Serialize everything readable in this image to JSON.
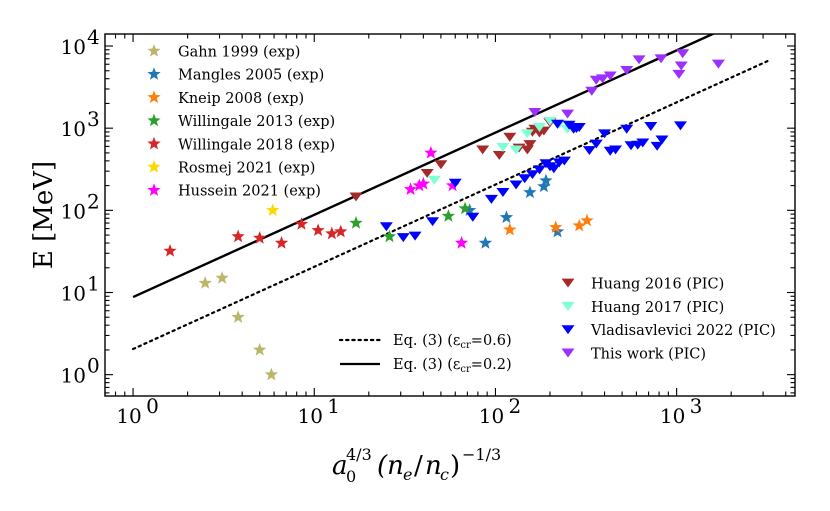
{
  "chart_data": {
    "type": "scatter",
    "title": "",
    "xscale": "log",
    "yscale": "log",
    "xlim": [
      0.7,
      4500
    ],
    "ylim": [
      0.55,
      14000
    ],
    "xlabel": "a_0^{4/3}(n_e/n_c)^{-1/3}",
    "ylabel": "E [MeV]",
    "x_ticks": [
      {
        "value": 1,
        "base": "10",
        "exp": "0"
      },
      {
        "value": 10,
        "base": "10",
        "exp": "1"
      },
      {
        "value": 100,
        "base": "10",
        "exp": "2"
      },
      {
        "value": 1000,
        "base": "10",
        "exp": "3"
      }
    ],
    "y_ticks": [
      {
        "value": 1,
        "base": "10",
        "exp": "0"
      },
      {
        "value": 10,
        "base": "10",
        "exp": "1"
      },
      {
        "value": 100,
        "base": "10",
        "exp": "2"
      },
      {
        "value": 1000,
        "base": "10",
        "exp": "3"
      },
      {
        "value": 10000,
        "base": "10",
        "exp": "4"
      }
    ],
    "lines": [
      {
        "name": "Eq. (3) (εcr=0.6)",
        "label_main": "Eq. (3) (ε",
        "label_sub": "cr",
        "label_end": "=0.6)",
        "style": "dotted",
        "color": "#000000",
        "x": [
          1,
          3200
        ],
        "y": [
          2.05,
          6600
        ]
      },
      {
        "name": "Eq. (3) (εcr=0.2)",
        "label_main": "Eq. (3) (ε",
        "label_sub": "cr",
        "label_end": "=0.2)",
        "style": "solid",
        "color": "#000000",
        "x": [
          1,
          1750
        ],
        "y": [
          8.8,
          15500
        ]
      }
    ],
    "series": [
      {
        "name": "Gahn 1999 (exp)",
        "marker": "star",
        "color": "#bcb66b",
        "x": [
          2.5,
          3.1,
          3.8,
          5.0,
          5.8
        ],
        "y": [
          13,
          15,
          5,
          2,
          1
        ]
      },
      {
        "name": "Mangles 2005 (exp)",
        "marker": "star",
        "color": "#1f77b4",
        "x": [
          72,
          88,
          115,
          155,
          185,
          190,
          220
        ],
        "y": [
          100,
          40,
          82,
          165,
          195,
          230,
          55
        ]
      },
      {
        "name": "Kneip 2008 (exp)",
        "marker": "star",
        "color": "#ff7f0e",
        "x": [
          120,
          215,
          290,
          320
        ],
        "y": [
          58,
          62,
          65,
          75
        ]
      },
      {
        "name": "Willingale 2013 (exp)",
        "marker": "star",
        "color": "#2ca02c",
        "x": [
          17,
          26,
          55,
          68
        ],
        "y": [
          70,
          48,
          85,
          105
        ]
      },
      {
        "name": "Willingale 2018 (exp)",
        "marker": "star",
        "color": "#d62728",
        "x": [
          1.6,
          3.8,
          5.0,
          6.6,
          8.5,
          10.5,
          12.5,
          14.0
        ],
        "y": [
          32,
          48,
          46,
          40,
          68,
          57,
          52,
          55
        ]
      },
      {
        "name": "Rosmej 2021 (exp)",
        "marker": "star",
        "color": "#ffd700",
        "x": [
          5.9
        ],
        "y": [
          100
        ]
      },
      {
        "name": "Hussein 2021 (exp)",
        "marker": "star",
        "color": "#ff00ff",
        "x": [
          34,
          38,
          40,
          44,
          58,
          65
        ],
        "y": [
          180,
          200,
          210,
          500,
          200,
          40
        ]
      },
      {
        "name": "Huang 2016 (PIC)",
        "marker": "triangle_down",
        "color": "#a52a2a",
        "x": [
          17,
          42,
          50,
          85,
          105,
          120,
          135,
          150,
          155,
          160,
          165,
          175,
          185,
          200
        ],
        "y": [
          150,
          290,
          370,
          560,
          480,
          800,
          590,
          560,
          650,
          920,
          1000,
          900,
          950,
          1200
        ]
      },
      {
        "name": "Huang 2017 (PIC)",
        "marker": "triangle_down",
        "color": "#7fffd4",
        "x": [
          46,
          110,
          130,
          150,
          175,
          200,
          225,
          250
        ],
        "y": [
          240,
          600,
          560,
          880,
          1050,
          1250,
          1150,
          1000
        ]
      },
      {
        "name": "Vladisavlevici 2022 (PIC)",
        "marker": "triangle_down",
        "color": "#0000ff",
        "x": [
          25,
          31,
          36,
          45,
          60,
          75,
          95,
          110,
          130,
          145,
          160,
          175,
          190,
          200,
          210,
          225,
          240,
          255,
          270,
          290,
          330,
          360,
          400,
          430,
          460,
          530,
          560,
          610,
          650,
          720,
          780,
          830,
          1050,
          220,
          280
        ],
        "y": [
          65,
          48,
          50,
          75,
          220,
          85,
          140,
          170,
          210,
          250,
          280,
          320,
          380,
          350,
          330,
          390,
          410,
          1120,
          1000,
          1050,
          550,
          660,
          880,
          540,
          560,
          1000,
          630,
          640,
          680,
          1080,
          620,
          740,
          1100,
          1150,
          1020
        ]
      },
      {
        "name": "This work (PIC)",
        "marker": "triangle_down",
        "color": "#9b30ff",
        "x": [
          165,
          250,
          340,
          360,
          390,
          430,
          530,
          620,
          820,
          1030,
          1060,
          1080,
          1700
        ],
        "y": [
          1600,
          1530,
          2900,
          3950,
          4100,
          4450,
          5200,
          7000,
          7200,
          4650,
          5900,
          8300,
          6200
        ]
      }
    ]
  }
}
